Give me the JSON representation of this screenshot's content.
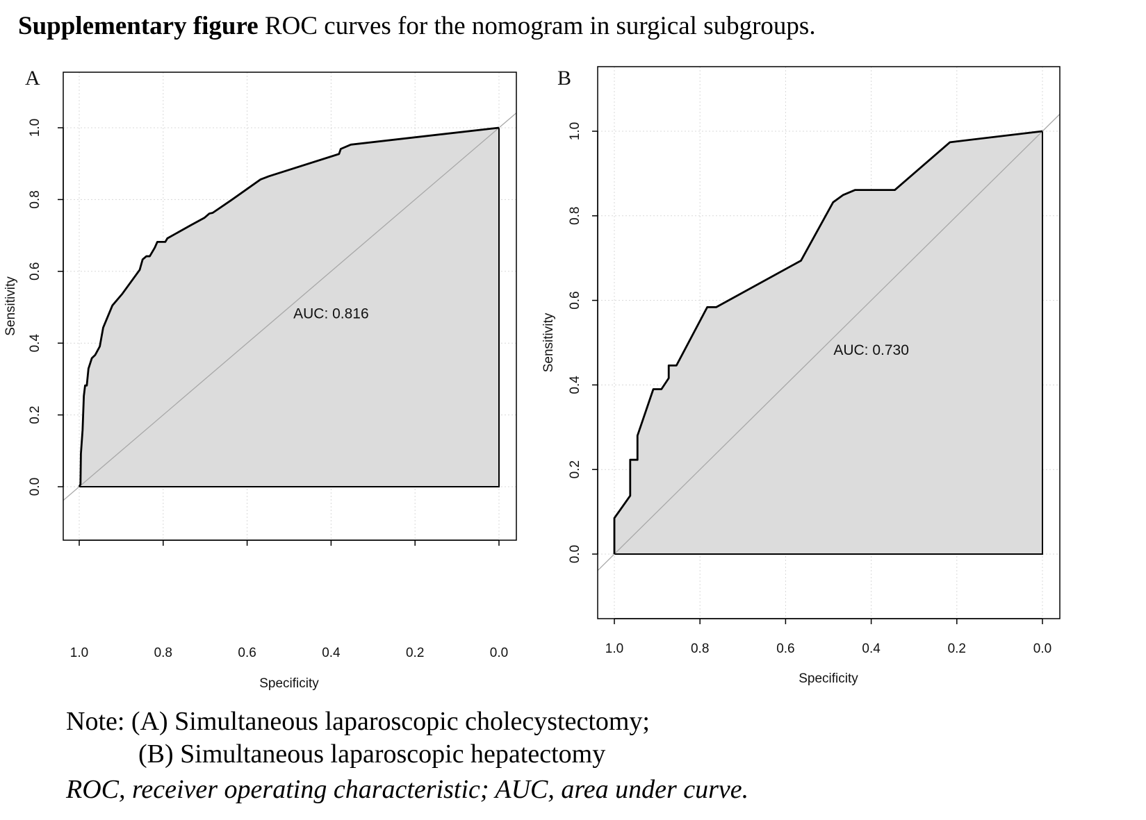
{
  "title": {
    "bold": "Supplementary figure",
    "rest": " ROC curves for the nomogram in surgical subgroups."
  },
  "notes": {
    "line1": "Note: (A) Simultaneous laparoscopic cholecystectomy;",
    "line2": "(B) Simultaneous laparoscopic hepatectomy",
    "line3": "ROC, receiver operating characteristic; AUC, area under curve."
  },
  "colors": {
    "fill": "#dcdcdc",
    "curve": "#000000",
    "diagonal": "#a8a8a8",
    "grid": "#d8d8d8"
  },
  "chart_data": [
    {
      "type": "line",
      "panel_label": "A",
      "xlabel": "Specificity",
      "ylabel": "Sensitivity",
      "xlim": [
        1.0,
        0.0
      ],
      "ylim": [
        0.0,
        1.0
      ],
      "x_reversed": true,
      "xticks": [
        "1.0",
        "0.8",
        "0.6",
        "0.4",
        "0.2",
        "0.0"
      ],
      "yticks": [
        "0.0",
        "0.2",
        "0.4",
        "0.6",
        "0.8",
        "1.0"
      ],
      "grid": true,
      "area_filled": true,
      "reference_diagonal": true,
      "annotation": "AUC: 0.816",
      "annotation_pos": [
        0.4,
        0.48
      ],
      "points": [
        [
          1.0,
          0.0
        ],
        [
          0.997,
          0.007
        ],
        [
          0.996,
          0.092
        ],
        [
          0.992,
          0.158
        ],
        [
          0.989,
          0.253
        ],
        [
          0.986,
          0.282
        ],
        [
          0.982,
          0.282
        ],
        [
          0.978,
          0.329
        ],
        [
          0.97,
          0.358
        ],
        [
          0.962,
          0.367
        ],
        [
          0.951,
          0.391
        ],
        [
          0.943,
          0.443
        ],
        [
          0.921,
          0.505
        ],
        [
          0.897,
          0.538
        ],
        [
          0.856,
          0.604
        ],
        [
          0.849,
          0.633
        ],
        [
          0.84,
          0.642
        ],
        [
          0.832,
          0.642
        ],
        [
          0.82,
          0.666
        ],
        [
          0.814,
          0.682
        ],
        [
          0.795,
          0.682
        ],
        [
          0.79,
          0.692
        ],
        [
          0.735,
          0.728
        ],
        [
          0.702,
          0.749
        ],
        [
          0.69,
          0.761
        ],
        [
          0.682,
          0.763
        ],
        [
          0.637,
          0.799
        ],
        [
          0.568,
          0.856
        ],
        [
          0.548,
          0.865
        ],
        [
          0.381,
          0.927
        ],
        [
          0.377,
          0.941
        ],
        [
          0.353,
          0.953
        ],
        [
          0.0,
          1.0
        ]
      ]
    },
    {
      "type": "line",
      "panel_label": "B",
      "xlabel": "Specificity",
      "ylabel": "Sensitivity",
      "xlim": [
        1.0,
        0.0
      ],
      "ylim": [
        0.0,
        1.0
      ],
      "x_reversed": true,
      "xticks": [
        "1.0",
        "0.8",
        "0.6",
        "0.4",
        "0.2",
        "0.0"
      ],
      "yticks": [
        "0.0",
        "0.2",
        "0.4",
        "0.6",
        "0.8",
        "1.0"
      ],
      "grid": true,
      "area_filled": true,
      "reference_diagonal": true,
      "annotation": "AUC: 0.730",
      "annotation_pos": [
        0.4,
        0.48
      ],
      "points": [
        [
          1.0,
          0.0
        ],
        [
          1.0,
          0.085
        ],
        [
          0.963,
          0.138
        ],
        [
          0.963,
          0.223
        ],
        [
          0.946,
          0.223
        ],
        [
          0.946,
          0.28
        ],
        [
          0.909,
          0.39
        ],
        [
          0.89,
          0.39
        ],
        [
          0.873,
          0.416
        ],
        [
          0.873,
          0.446
        ],
        [
          0.855,
          0.446
        ],
        [
          0.783,
          0.584
        ],
        [
          0.762,
          0.584
        ],
        [
          0.564,
          0.694
        ],
        [
          0.489,
          0.832
        ],
        [
          0.466,
          0.849
        ],
        [
          0.438,
          0.861
        ],
        [
          0.345,
          0.861
        ],
        [
          0.216,
          0.974
        ],
        [
          0.0,
          1.0
        ]
      ]
    }
  ]
}
